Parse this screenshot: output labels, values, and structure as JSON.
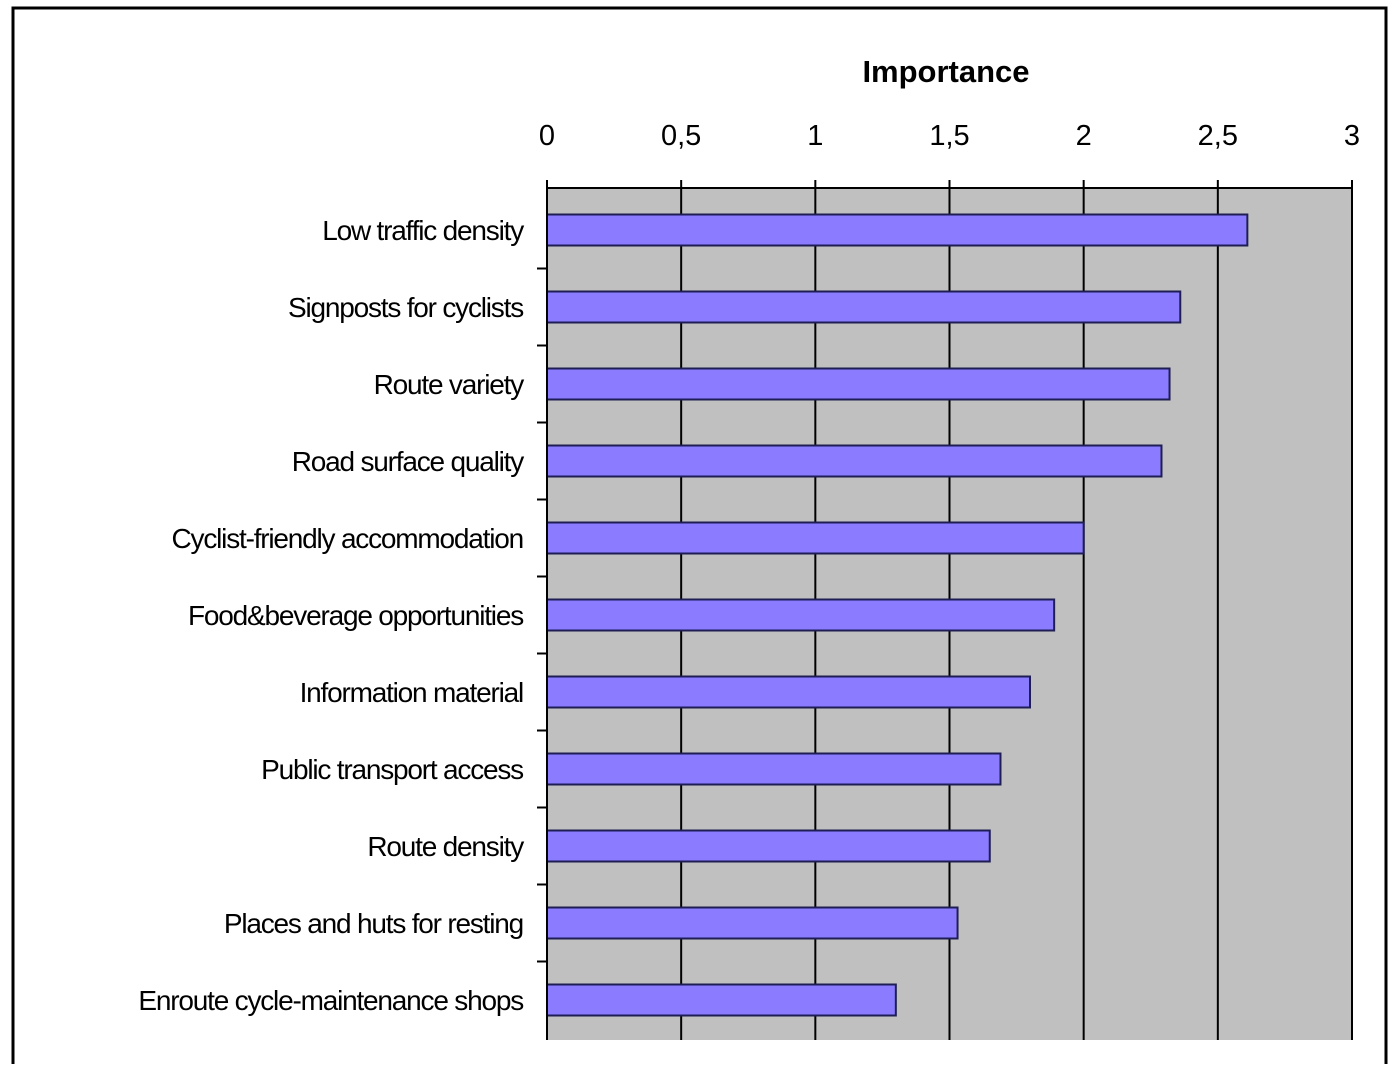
{
  "chart_data": {
    "type": "bar",
    "orientation": "horizontal",
    "title": "",
    "xlabel": "Importance",
    "ylabel": "",
    "xlim": [
      0,
      3
    ],
    "x_ticks": [
      "0",
      "0,5",
      "1",
      "1,5",
      "2",
      "2,5",
      "3"
    ],
    "x_tick_values": [
      0,
      0.5,
      1,
      1.5,
      2,
      2.5,
      3
    ],
    "x_axis_position": "top",
    "grid": true,
    "legend": "none",
    "categories": [
      "Low traffic density",
      "Signposts for cyclists",
      "Route variety",
      "Road surface quality",
      "Cyclist-friendly accommodation",
      "Food&beverage opportunities",
      "Information material",
      "Public transport access",
      "Route density",
      "Places and huts for resting",
      "Enroute cycle-maintenance shops"
    ],
    "values": [
      2.61,
      2.36,
      2.32,
      2.29,
      2.0,
      1.89,
      1.8,
      1.69,
      1.65,
      1.53,
      1.3
    ],
    "colors": {
      "bar_fill": "#8a7bff",
      "bar_stroke": "#1e1e55",
      "plot_background": "#c0c0c0",
      "gridline": "#000000",
      "frame": "#000000"
    }
  }
}
